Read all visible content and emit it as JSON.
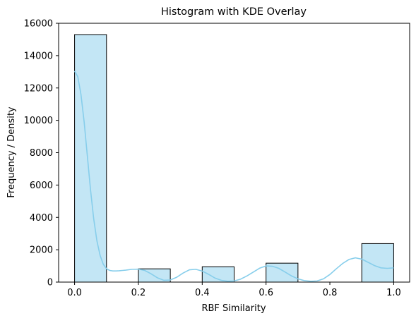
{
  "chart_data": {
    "type": "bar",
    "title": "Histogram with KDE Overlay",
    "xlabel": "RBF Similarity",
    "ylabel": "Frequency / Density",
    "xlim": [
      -0.05,
      1.05
    ],
    "ylim": [
      0,
      16000
    ],
    "x_ticks": [
      0.0,
      0.2,
      0.4,
      0.6,
      0.8,
      1.0
    ],
    "x_tick_labels": [
      "0.0",
      "0.2",
      "0.4",
      "0.6",
      "0.8",
      "1.0"
    ],
    "y_ticks": [
      0,
      2000,
      4000,
      6000,
      8000,
      10000,
      12000,
      14000,
      16000
    ],
    "y_tick_labels": [
      "0",
      "2000",
      "4000",
      "6000",
      "8000",
      "10000",
      "12000",
      "14000",
      "16000"
    ],
    "bins": [
      {
        "x0": 0.0,
        "x1": 0.1,
        "count": 15300
      },
      {
        "x0": 0.1,
        "x1": 0.2,
        "count": 0
      },
      {
        "x0": 0.2,
        "x1": 0.3,
        "count": 820
      },
      {
        "x0": 0.3,
        "x1": 0.4,
        "count": 0
      },
      {
        "x0": 0.4,
        "x1": 0.5,
        "count": 950
      },
      {
        "x0": 0.5,
        "x1": 0.6,
        "count": 0
      },
      {
        "x0": 0.6,
        "x1": 0.7,
        "count": 1170
      },
      {
        "x0": 0.7,
        "x1": 0.8,
        "count": 0
      },
      {
        "x0": 0.8,
        "x1": 0.9,
        "count": 0
      },
      {
        "x0": 0.9,
        "x1": 1.0,
        "count": 2380
      }
    ],
    "kde": {
      "x": [
        0.0,
        0.01,
        0.02,
        0.03,
        0.04,
        0.05,
        0.06,
        0.07,
        0.08,
        0.09,
        0.1,
        0.11,
        0.12,
        0.13,
        0.14,
        0.15,
        0.16,
        0.18,
        0.2,
        0.22,
        0.24,
        0.26,
        0.28,
        0.3,
        0.32,
        0.34,
        0.36,
        0.38,
        0.4,
        0.42,
        0.44,
        0.46,
        0.48,
        0.5,
        0.52,
        0.54,
        0.56,
        0.58,
        0.6,
        0.62,
        0.64,
        0.66,
        0.68,
        0.7,
        0.72,
        0.74,
        0.76,
        0.78,
        0.8,
        0.82,
        0.84,
        0.86,
        0.88,
        0.9,
        0.92,
        0.94,
        0.96,
        0.98,
        1.0
      ],
      "y": [
        13050,
        12700,
        11600,
        9900,
        7800,
        5700,
        3900,
        2550,
        1650,
        1100,
        830,
        720,
        690,
        690,
        700,
        720,
        740,
        790,
        800,
        720,
        510,
        260,
        110,
        130,
        300,
        560,
        760,
        790,
        680,
        480,
        250,
        110,
        50,
        70,
        180,
        380,
        620,
        860,
        1000,
        980,
        850,
        620,
        380,
        200,
        90,
        50,
        70,
        200,
        470,
        820,
        1150,
        1400,
        1500,
        1420,
        1220,
        1020,
        880,
        850,
        880
      ]
    },
    "bar_color": "#87CEEB",
    "bar_alpha": 0.5,
    "bar_edge_color": "#000000",
    "kde_color": "#87CEEB",
    "grid": false,
    "legend": "none"
  }
}
